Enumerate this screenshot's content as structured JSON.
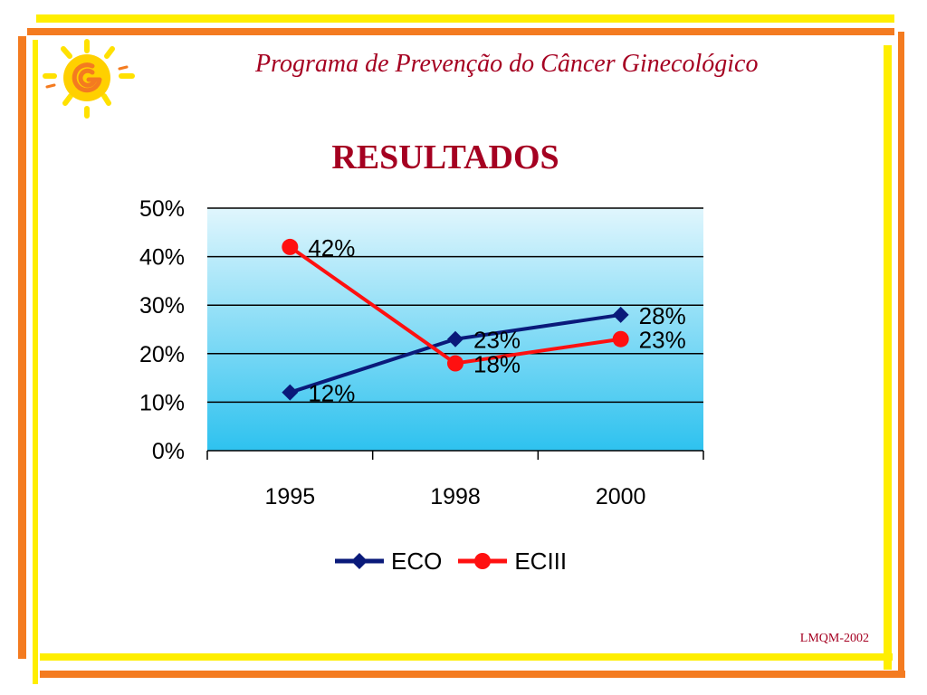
{
  "header": {
    "title": "Programa de Prevenção do Câncer Ginecológico"
  },
  "footer": {
    "note": "LMQM-2002"
  },
  "colors": {
    "title": "#a50021",
    "frame_yellow": "#ffee00",
    "frame_orange": "#f47b20",
    "series_eco": "#0a1a7a",
    "series_eciii": "#ff1010",
    "plot_top": "#e0f6fd",
    "plot_bottom": "#2ec2ef"
  },
  "logo": {
    "icon": "sun-spiral-logo-icon"
  },
  "chart_data": {
    "type": "line",
    "title": "RESULTADOS",
    "categories": [
      "1995",
      "1998",
      "2000"
    ],
    "ylim": [
      0,
      0.5
    ],
    "yticks": [
      "0%",
      "10%",
      "20%",
      "30%",
      "40%",
      "50%"
    ],
    "grid": true,
    "legend_position": "bottom",
    "series": [
      {
        "name": "ECO",
        "marker": "diamond",
        "values": [
          0.12,
          0.23,
          0.28
        ],
        "labels": [
          "12%",
          "23%",
          "28%"
        ]
      },
      {
        "name": "ECIII",
        "marker": "circle",
        "values": [
          0.42,
          0.18,
          0.23
        ],
        "labels": [
          "42%",
          "18%",
          "23%"
        ]
      }
    ]
  }
}
